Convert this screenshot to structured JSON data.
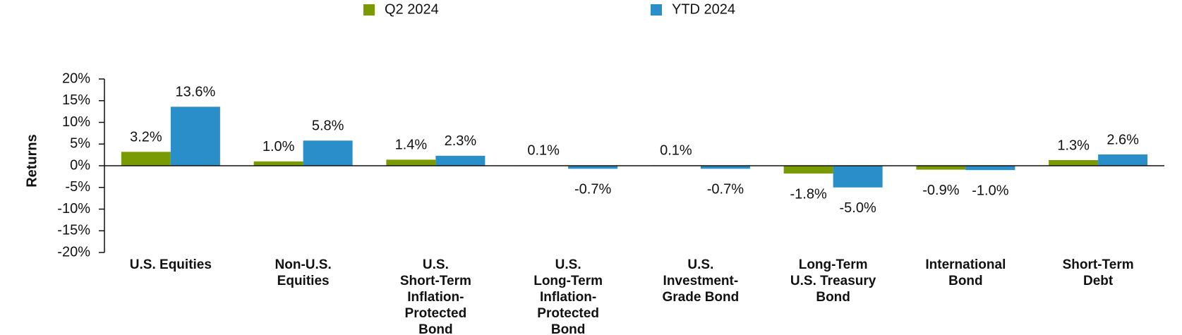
{
  "chart_data": {
    "type": "bar",
    "y_label": "Returns",
    "categories": [
      "U.S. Equities",
      "Non-U.S.\nEquities",
      "U.S.\nShort-Term\nInflation-\nProtected\nBond",
      "U.S.\nLong-Term\nInflation-\nProtected\nBond",
      "U.S.\nInvestment-\nGrade Bond",
      "Long-Term\nU.S. Treasury\nBond",
      "International\nBond",
      "Short-Term\nDebt"
    ],
    "series": [
      {
        "name": "Q2 2024",
        "color": "#7a9a01",
        "values": [
          3.2,
          1.0,
          1.4,
          0.1,
          0.1,
          -1.8,
          -0.9,
          1.3
        ],
        "value_labels": [
          "3.2%",
          "1.0%",
          "1.4%",
          "0.1%",
          "0.1%",
          "-1.8%",
          "-0.9%",
          "1.3%"
        ]
      },
      {
        "name": "YTD 2024",
        "color": "#2a8fc8",
        "values": [
          13.6,
          5.8,
          2.3,
          -0.7,
          -0.7,
          -5.0,
          -1.0,
          2.6
        ],
        "value_labels": [
          "13.6%",
          "5.8%",
          "2.3%",
          "-0.7%",
          "-0.7%",
          "-5.0%",
          "-1.0%",
          "2.6%"
        ]
      }
    ],
    "ylim": [
      -20,
      20
    ],
    "yticks": [
      {
        "value": 20,
        "label": "20%"
      },
      {
        "value": 15,
        "label": "15%"
      },
      {
        "value": 10,
        "label": "10%"
      },
      {
        "value": 5,
        "label": "5%"
      },
      {
        "value": 0,
        "label": "0%"
      },
      {
        "value": -5,
        "label": "-5%"
      },
      {
        "value": -10,
        "label": "-10%"
      },
      {
        "value": -15,
        "label": "-15%"
      },
      {
        "value": -20,
        "label": "-20%"
      }
    ],
    "legend": "top"
  }
}
